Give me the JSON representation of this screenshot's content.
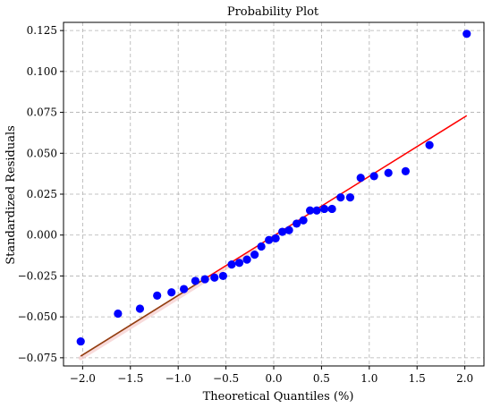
{
  "chart_data": {
    "type": "scatter",
    "title": "Probability Plot",
    "xlabel": "Theoretical Quantiles (%)",
    "ylabel": "Standardized Residuals",
    "xlim": [
      -2.2,
      2.2
    ],
    "ylim": [
      -0.08,
      0.13
    ],
    "x_ticks": [
      -2.0,
      -1.5,
      -1.0,
      -0.5,
      0.0,
      0.5,
      1.0,
      1.5,
      2.0
    ],
    "x_tick_labels": [
      "−2.0",
      "−1.5",
      "−1.0",
      "−0.5",
      "0.0",
      "0.5",
      "1.0",
      "1.5",
      "2.0"
    ],
    "y_ticks": [
      -0.075,
      -0.05,
      -0.025,
      0.0,
      0.025,
      0.05,
      0.075,
      0.1,
      0.125
    ],
    "y_tick_labels": [
      "−0.075",
      "−0.050",
      "−0.025",
      "0.000",
      "0.025",
      "0.050",
      "0.075",
      "0.100",
      "0.125"
    ],
    "grid": true,
    "grid_style": "dashed",
    "legend": "none",
    "series": [
      {
        "kind": "points",
        "color": "#0000ff",
        "x": [
          -2.02,
          -1.63,
          -1.4,
          -1.22,
          -1.07,
          -0.94,
          -0.82,
          -0.72,
          -0.62,
          -0.53,
          -0.44,
          -0.36,
          -0.28,
          -0.2,
          -0.13,
          -0.05,
          0.02,
          0.09,
          0.16,
          0.24,
          0.31,
          0.38,
          0.45,
          0.53,
          0.61,
          0.7,
          0.8,
          0.91,
          1.05,
          1.2,
          1.38,
          1.63,
          2.02
        ],
        "y": [
          -0.065,
          -0.048,
          -0.045,
          -0.037,
          -0.035,
          -0.033,
          -0.028,
          -0.027,
          -0.026,
          -0.025,
          -0.018,
          -0.017,
          -0.015,
          -0.012,
          -0.007,
          -0.003,
          -0.002,
          0.002,
          0.003,
          0.007,
          0.009,
          0.015,
          0.015,
          0.016,
          0.016,
          0.023,
          0.023,
          0.035,
          0.036,
          0.038,
          0.039,
          0.055,
          0.123
        ]
      },
      {
        "kind": "fit-line",
        "color": "#ff0000",
        "overlap_color": "#8b4513",
        "x": [
          -2.02,
          2.02
        ],
        "y": [
          -0.074,
          0.073
        ]
      }
    ]
  }
}
